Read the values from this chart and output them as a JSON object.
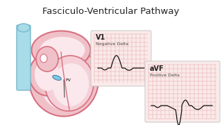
{
  "title": "Fasciculo-Ventricular Pathway",
  "title_fontsize": 9.5,
  "bg_color": "#ffffff",
  "ecg_bg_color": "#faeaea",
  "ecg_grid_color": "#e8a8a8",
  "ecg_line_color": "#111111",
  "v1_label": "V1",
  "v1_sublabel": "Negative Delta",
  "avf_label": "aVF",
  "avf_sublabel": "Positive Delta",
  "heart_outer_fill": "#f0c0c8",
  "heart_outer_edge": "#d87080",
  "heart_inner_fill": "#fae8ec",
  "heart_inner_edge": "#d87080",
  "aorta_fill": "#a8dce8",
  "aorta_edge": "#78b8cc",
  "fv_label": "FV",
  "fv_label_color": "#000000",
  "fv_marker_fill": "#80c8e0",
  "fv_marker_edge": "#3878a0"
}
